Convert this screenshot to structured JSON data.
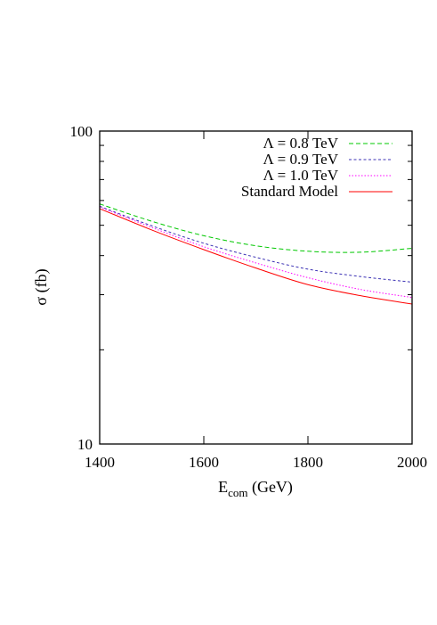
{
  "chart_data": {
    "type": "line",
    "title": "",
    "xlabel": "E",
    "xlabel_sub": "com",
    "xlabel_unit": " (GeV)",
    "ylabel": "σ (fb)",
    "xlim": [
      1400,
      2000
    ],
    "ylim": [
      10,
      100
    ],
    "yscale": "log",
    "grid": false,
    "legend_position": "top-right",
    "x_ticks": [
      1400,
      1600,
      1800,
      2000
    ],
    "x_tick_labels": [
      "1400",
      "1600",
      "1800",
      "2000"
    ],
    "y_labeled_ticks": [
      10,
      100
    ],
    "y_tick_labels": [
      "10",
      "100"
    ],
    "y_minor_ticks": [
      20,
      30,
      40,
      50,
      60,
      70,
      80,
      90
    ],
    "x": [
      1400,
      1500,
      1600,
      1700,
      1800,
      1900,
      2000
    ],
    "series": [
      {
        "name": "Λ = 0.8 TeV",
        "color": "#00c800",
        "dash": "dashed",
        "values": [
          58.5,
          51.5,
          46.3,
          43.0,
          41.3,
          41.0,
          42.2
        ]
      },
      {
        "name": "Λ = 0.9 TeV",
        "color": "#3c32b4",
        "dash": "dashed-fine",
        "values": [
          57.5,
          49.8,
          43.8,
          39.5,
          36.2,
          34.3,
          32.9
        ]
      },
      {
        "name": "Λ = 1.0 TeV",
        "color": "#ff00ff",
        "dash": "dotted",
        "values": [
          57.2,
          49.2,
          42.7,
          37.9,
          34.0,
          31.2,
          29.4
        ]
      },
      {
        "name": "Standard Model",
        "color": "#ff0000",
        "dash": "solid",
        "values": [
          56.5,
          48.3,
          41.8,
          36.5,
          32.3,
          29.8,
          28.0
        ]
      }
    ]
  }
}
